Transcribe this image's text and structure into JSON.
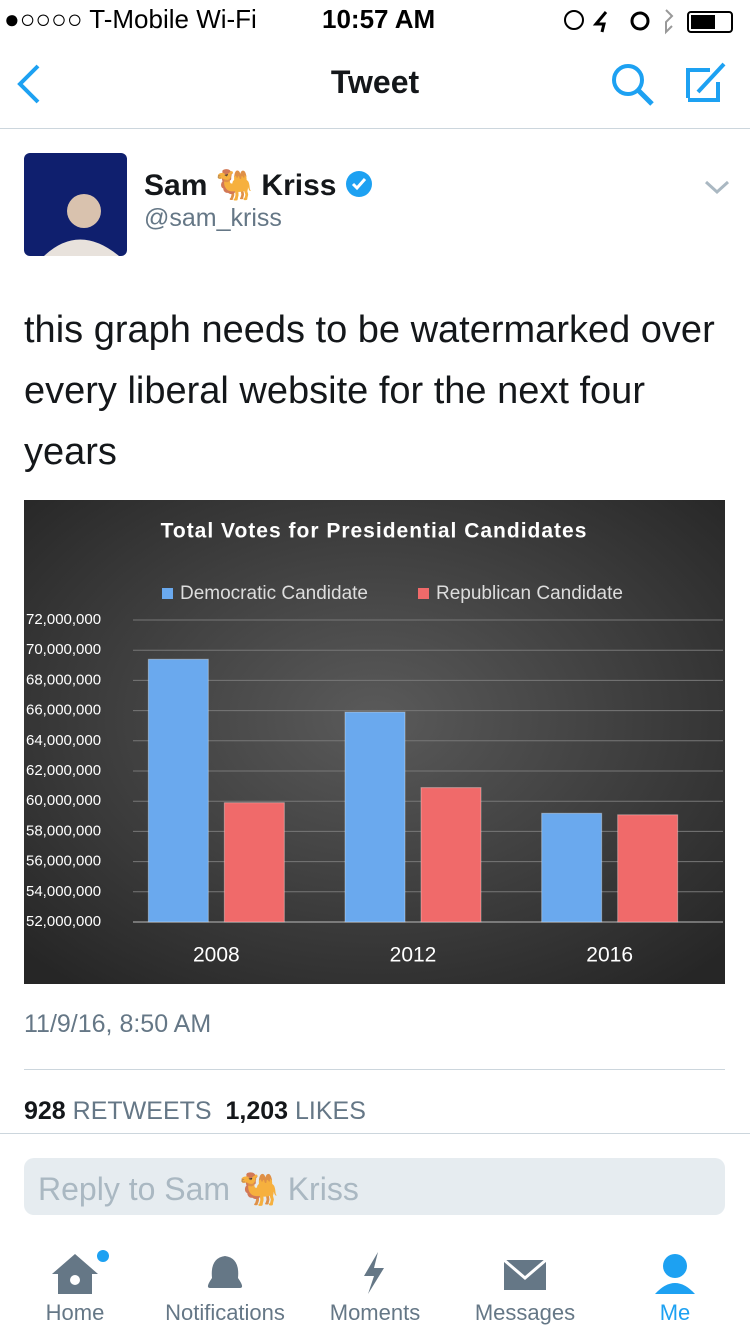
{
  "status_bar": {
    "carrier": "●○○○○ T-Mobile Wi-Fi",
    "time": "10:57 AM"
  },
  "nav": {
    "title": "Tweet"
  },
  "tweet": {
    "name_first": "Sam",
    "name_emoji": "🐫",
    "name_last": "Kriss",
    "handle": "@sam_kriss",
    "text": "this graph needs to be watermarked over every liberal website for the next four years",
    "timestamp": "11/9/16, 8:50 AM",
    "retweets": "928",
    "retweets_label": "RETWEETS",
    "likes": "1,203",
    "likes_label": "LIKES"
  },
  "chart_data": {
    "type": "bar",
    "title": "Total Votes for Presidential Candidates",
    "categories": [
      "2008",
      "2012",
      "2016"
    ],
    "series": [
      {
        "name": "Democratic Candidate",
        "color": "#6aa9ee",
        "values": [
          69400000,
          65900000,
          59200000
        ]
      },
      {
        "name": "Republican Candidate",
        "color": "#f06a6a",
        "values": [
          59900000,
          60900000,
          59100000
        ]
      }
    ],
    "ylim": [
      52000000,
      72000000
    ],
    "yticks": [
      {
        "value": 52000000,
        "label": "52,000,000"
      },
      {
        "value": 54000000,
        "label": "54,000,000"
      },
      {
        "value": 56000000,
        "label": "56,000,000"
      },
      {
        "value": 58000000,
        "label": "58,000,000"
      },
      {
        "value": 60000000,
        "label": "60,000,000"
      },
      {
        "value": 62000000,
        "label": "62,000,000"
      },
      {
        "value": 64000000,
        "label": "64,000,000"
      },
      {
        "value": 66000000,
        "label": "66,000,000"
      },
      {
        "value": 68000000,
        "label": "68,000,000"
      },
      {
        "value": 70000000,
        "label": "70,000,000"
      },
      {
        "value": 72000000,
        "label": "72,000,000"
      }
    ],
    "grid": true,
    "legend": "top"
  },
  "reply": {
    "placeholder": "Reply to Sam 🐫 Kriss"
  },
  "tab_bar": {
    "tabs": [
      "Home",
      "Notifications",
      "Moments",
      "Messages",
      "Me"
    ]
  }
}
